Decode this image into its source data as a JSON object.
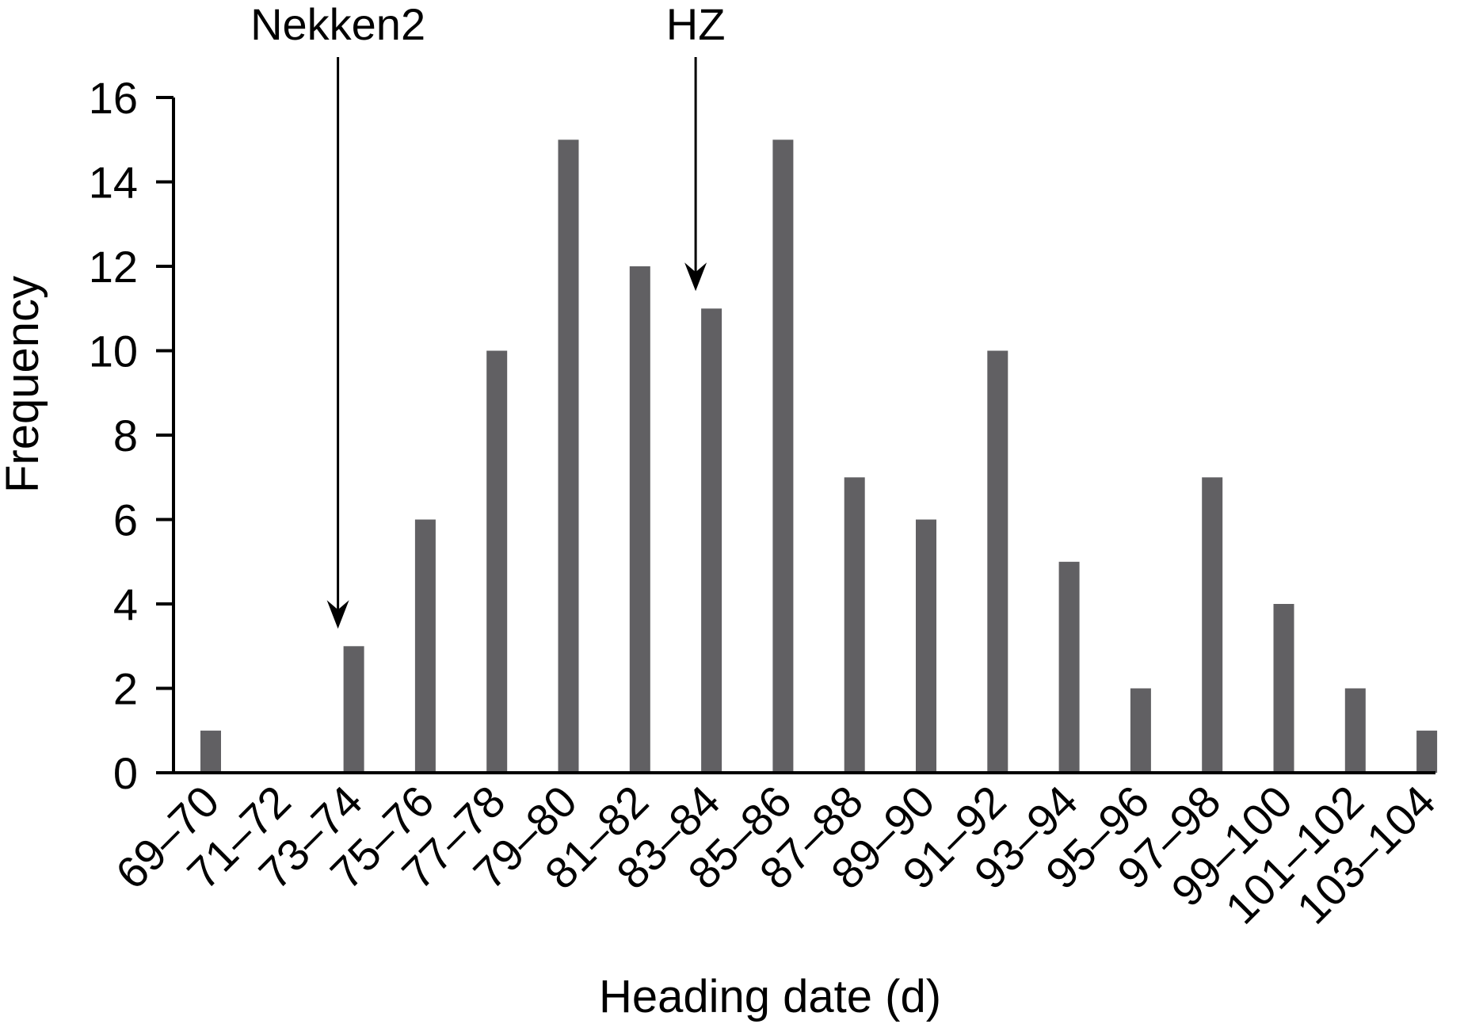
{
  "chart_data": {
    "type": "bar",
    "title": "",
    "xlabel": "Heading date (d)",
    "ylabel": "Frequency",
    "categories": [
      "69–70",
      "71–72",
      "73–74",
      "75–76",
      "77–78",
      "79–80",
      "81–82",
      "83–84",
      "85–86",
      "87–88",
      "89–90",
      "91–92",
      "93–94",
      "95–96",
      "97–98",
      "99–100",
      "101–102",
      "103–104"
    ],
    "values": [
      1,
      0,
      3,
      6,
      10,
      15,
      12,
      11,
      15,
      7,
      6,
      10,
      5,
      2,
      7,
      4,
      2,
      1
    ],
    "ylim": [
      0,
      16
    ],
    "yticks": [
      0,
      2,
      4,
      6,
      8,
      10,
      12,
      14,
      16
    ],
    "grid": false,
    "legend": "none",
    "bar_color": "#616063",
    "annotations": [
      {
        "text": "Nekken2",
        "category": "73–74",
        "value": 3
      },
      {
        "text": "HZ",
        "category": "83–84",
        "value": 11
      }
    ]
  }
}
